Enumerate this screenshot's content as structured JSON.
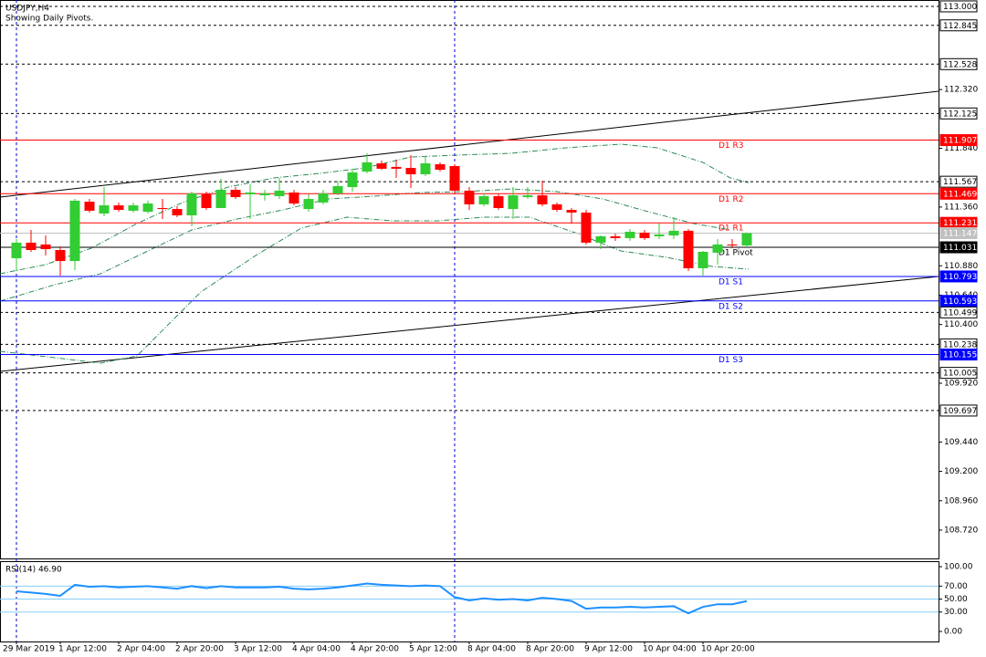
{
  "chart_data": {
    "type": "candlestick",
    "title": "USDJPY,H4",
    "subtitle": "Showing Daily Pivots.",
    "up_color": "#32cd32",
    "down_color": "#ff0000",
    "ylim": [
      108.481,
      113.052
    ],
    "yticks": [
      {
        "value": 112.32,
        "label": "112.320"
      },
      {
        "value": 111.84,
        "label": "111.840"
      },
      {
        "value": 111.36,
        "label": "111.360"
      },
      {
        "value": 110.88,
        "label": "110.880"
      },
      {
        "value": 110.64,
        "label": "110.640"
      },
      {
        "value": 110.4,
        "label": "110.400"
      },
      {
        "value": 109.92,
        "label": "109.920"
      },
      {
        "value": 109.44,
        "label": "109.440"
      },
      {
        "value": 109.2,
        "label": "109.200"
      },
      {
        "value": 108.96,
        "label": "108.960"
      },
      {
        "value": 108.72,
        "label": "108.720"
      }
    ],
    "period_separators": [
      0,
      30
    ],
    "categories": [
      "29 Mar 2019",
      null,
      null,
      "1 Apr 12:00",
      null,
      null,
      null,
      "2 Apr 04:00",
      null,
      null,
      null,
      "2 Apr 20:00",
      null,
      null,
      null,
      "3 Apr 12:00",
      null,
      null,
      null,
      "4 Apr 04:00",
      null,
      null,
      null,
      "4 Apr 20:00",
      null,
      null,
      null,
      "5 Apr 12:00",
      null,
      null,
      null,
      "8 Apr 04:00",
      null,
      null,
      null,
      "8 Apr 20:00",
      null,
      null,
      null,
      "9 Apr 12:00",
      null,
      null,
      null,
      "10 Apr 04:00",
      null,
      null,
      null,
      "10 Apr 20:00",
      null,
      null,
      null
    ],
    "open": [
      110.942,
      111.069,
      111.054,
      111.009,
      110.919,
      111.404,
      111.307,
      111.374,
      111.33,
      111.322,
      111.352,
      111.344,
      111.292,
      111.464,
      111.352,
      111.501,
      111.464,
      111.456,
      111.449,
      111.479,
      111.344,
      111.397,
      111.471,
      111.523,
      111.65,
      111.717,
      111.688,
      111.68,
      111.628,
      111.71,
      111.695,
      111.494,
      111.382,
      111.449,
      111.344,
      111.441,
      111.456,
      111.382,
      111.337,
      111.315,
      111.069,
      111.121,
      111.106,
      111.151,
      111.121,
      111.128,
      111.166,
      110.86,
      110.987,
      111.054,
      111.046
    ],
    "high": [
      111.098,
      111.173,
      111.128,
      111.039,
      111.426,
      111.426,
      111.523,
      111.397,
      111.397,
      111.412,
      111.426,
      111.367,
      111.486,
      111.486,
      111.591,
      111.523,
      111.546,
      111.501,
      111.598,
      111.501,
      111.464,
      111.501,
      111.576,
      111.673,
      111.799,
      111.74,
      111.747,
      111.784,
      111.77,
      111.725,
      111.71,
      111.523,
      111.471,
      111.471,
      111.523,
      111.523,
      111.576,
      111.397,
      111.352,
      111.337,
      111.128,
      111.143,
      111.18,
      111.173,
      111.225,
      111.277,
      111.18,
      111.001,
      111.098,
      111.098,
      111.151
    ],
    "low": [
      110.837,
      110.994,
      110.964,
      110.8,
      110.845,
      111.315,
      111.285,
      111.322,
      111.315,
      111.307,
      111.262,
      111.277,
      111.203,
      111.337,
      111.352,
      111.426,
      111.262,
      111.412,
      111.426,
      111.374,
      111.322,
      111.382,
      111.456,
      111.486,
      111.635,
      111.665,
      111.598,
      111.516,
      111.613,
      111.65,
      111.471,
      111.337,
      111.367,
      111.337,
      111.262,
      111.426,
      111.367,
      111.322,
      111.225,
      111.054,
      111.016,
      111.083,
      111.083,
      111.091,
      111.098,
      111.098,
      110.837,
      110.8,
      110.89,
      111.024,
      111.031
    ],
    "close": [
      111.069,
      111.009,
      111.016,
      110.919,
      111.412,
      111.33,
      111.374,
      111.337,
      111.374,
      111.389,
      111.344,
      111.292,
      111.471,
      111.352,
      111.501,
      111.441,
      111.479,
      111.471,
      111.494,
      111.389,
      111.426,
      111.471,
      111.531,
      111.643,
      111.725,
      111.673,
      111.673,
      111.628,
      111.717,
      111.665,
      111.494,
      111.382,
      111.449,
      111.352,
      111.456,
      111.456,
      111.382,
      111.337,
      111.315,
      111.069,
      111.121,
      111.106,
      111.158,
      111.106,
      111.136,
      111.166,
      110.86,
      110.994,
      111.054,
      111.046,
      111.147
    ],
    "levels": [
      {
        "value": 113.0,
        "label": "113.000",
        "style": "dashed",
        "color": "#000000",
        "box": "#ffffff",
        "text_color": "#000000"
      },
      {
        "value": 112.845,
        "label": "112.845",
        "style": "dashed",
        "color": "#000000",
        "box": "#ffffff",
        "text_color": "#000000"
      },
      {
        "value": 112.528,
        "label": "112.528",
        "style": "dashed",
        "color": "#000000",
        "box": "#ffffff",
        "text_color": "#000000"
      },
      {
        "value": 112.125,
        "label": "112.125",
        "style": "dashed",
        "color": "#000000",
        "box": "#ffffff",
        "text_color": "#000000"
      },
      {
        "value": 111.907,
        "label": "111.907",
        "name": "D1  R3",
        "style": "solid",
        "color": "#ff0000",
        "box": "#ff0000",
        "text_color": "#ffffff"
      },
      {
        "value": 111.567,
        "label": "111.567",
        "style": "dashed",
        "color": "#000000",
        "box": "#ffffff",
        "text_color": "#000000"
      },
      {
        "value": 111.469,
        "label": "111.469",
        "name": "D1  R2",
        "style": "solid",
        "color": "#ff0000",
        "box": "#ff0000",
        "text_color": "#ffffff"
      },
      {
        "value": 111.231,
        "label": "111.231",
        "name": "D1  R1",
        "style": "solid",
        "color": "#ff0000",
        "box": "#ff0000",
        "text_color": "#ffffff"
      },
      {
        "value": 111.147,
        "label": "111.147",
        "style": "solid",
        "color": "#c0c0c0",
        "box": "#c0c0c0",
        "text_color": "#ffffff"
      },
      {
        "value": 111.031,
        "label": "111.031",
        "name": "D1  Pivot",
        "style": "solid",
        "color": "#000000",
        "box": "#000000",
        "text_color": "#ffffff"
      },
      {
        "value": 110.793,
        "label": "110.793",
        "name": "D1  S1",
        "style": "solid",
        "color": "#0000ff",
        "box": "#0000ff",
        "text_color": "#ffffff"
      },
      {
        "value": 110.593,
        "label": "110.593",
        "name": "D1  S2",
        "style": "solid",
        "color": "#0000ff",
        "box": "#0000ff",
        "text_color": "#ffffff"
      },
      {
        "value": 110.499,
        "label": "110.499",
        "style": "dashed",
        "color": "#000000",
        "box": "#ffffff",
        "text_color": "#000000"
      },
      {
        "value": 110.238,
        "label": "110.238",
        "style": "dashed",
        "color": "#000000",
        "box": "#ffffff",
        "text_color": "#000000"
      },
      {
        "value": 110.155,
        "label": "110.155",
        "name": "D1  S3",
        "style": "solid",
        "color": "#0000ff",
        "box": "#0000ff",
        "text_color": "#ffffff"
      },
      {
        "value": 110.005,
        "label": "110.005",
        "style": "dashed",
        "color": "#000000",
        "box": "#ffffff",
        "text_color": "#000000"
      },
      {
        "value": 109.697,
        "label": "109.697",
        "style": "dashed",
        "color": "#000000",
        "box": "#ffffff",
        "text_color": "#000000"
      }
    ],
    "rsi": {
      "title": "RSI(14) 46.90",
      "color": "#1e90ff",
      "ylim": [
        -15.5,
        108.5
      ],
      "yticks": [
        {
          "value": 100,
          "label": "100.00"
        },
        {
          "value": 70,
          "label": "70.00"
        },
        {
          "value": 50,
          "label": "50.00"
        },
        {
          "value": 30,
          "label": "30.00"
        },
        {
          "value": 0,
          "label": "0.00"
        }
      ],
      "levels": [
        70,
        50,
        30
      ],
      "values": [
        62,
        60,
        58,
        55,
        72,
        69,
        70,
        68,
        69,
        70,
        68,
        66,
        70,
        67,
        70,
        68,
        68,
        68,
        69,
        66,
        65,
        66,
        68,
        71,
        74,
        72,
        71,
        70,
        71,
        70,
        53,
        48,
        51,
        49,
        50,
        48,
        52,
        50,
        47,
        35,
        37,
        37,
        38,
        37,
        38,
        39,
        28,
        38,
        42,
        42,
        46.9
      ]
    }
  }
}
